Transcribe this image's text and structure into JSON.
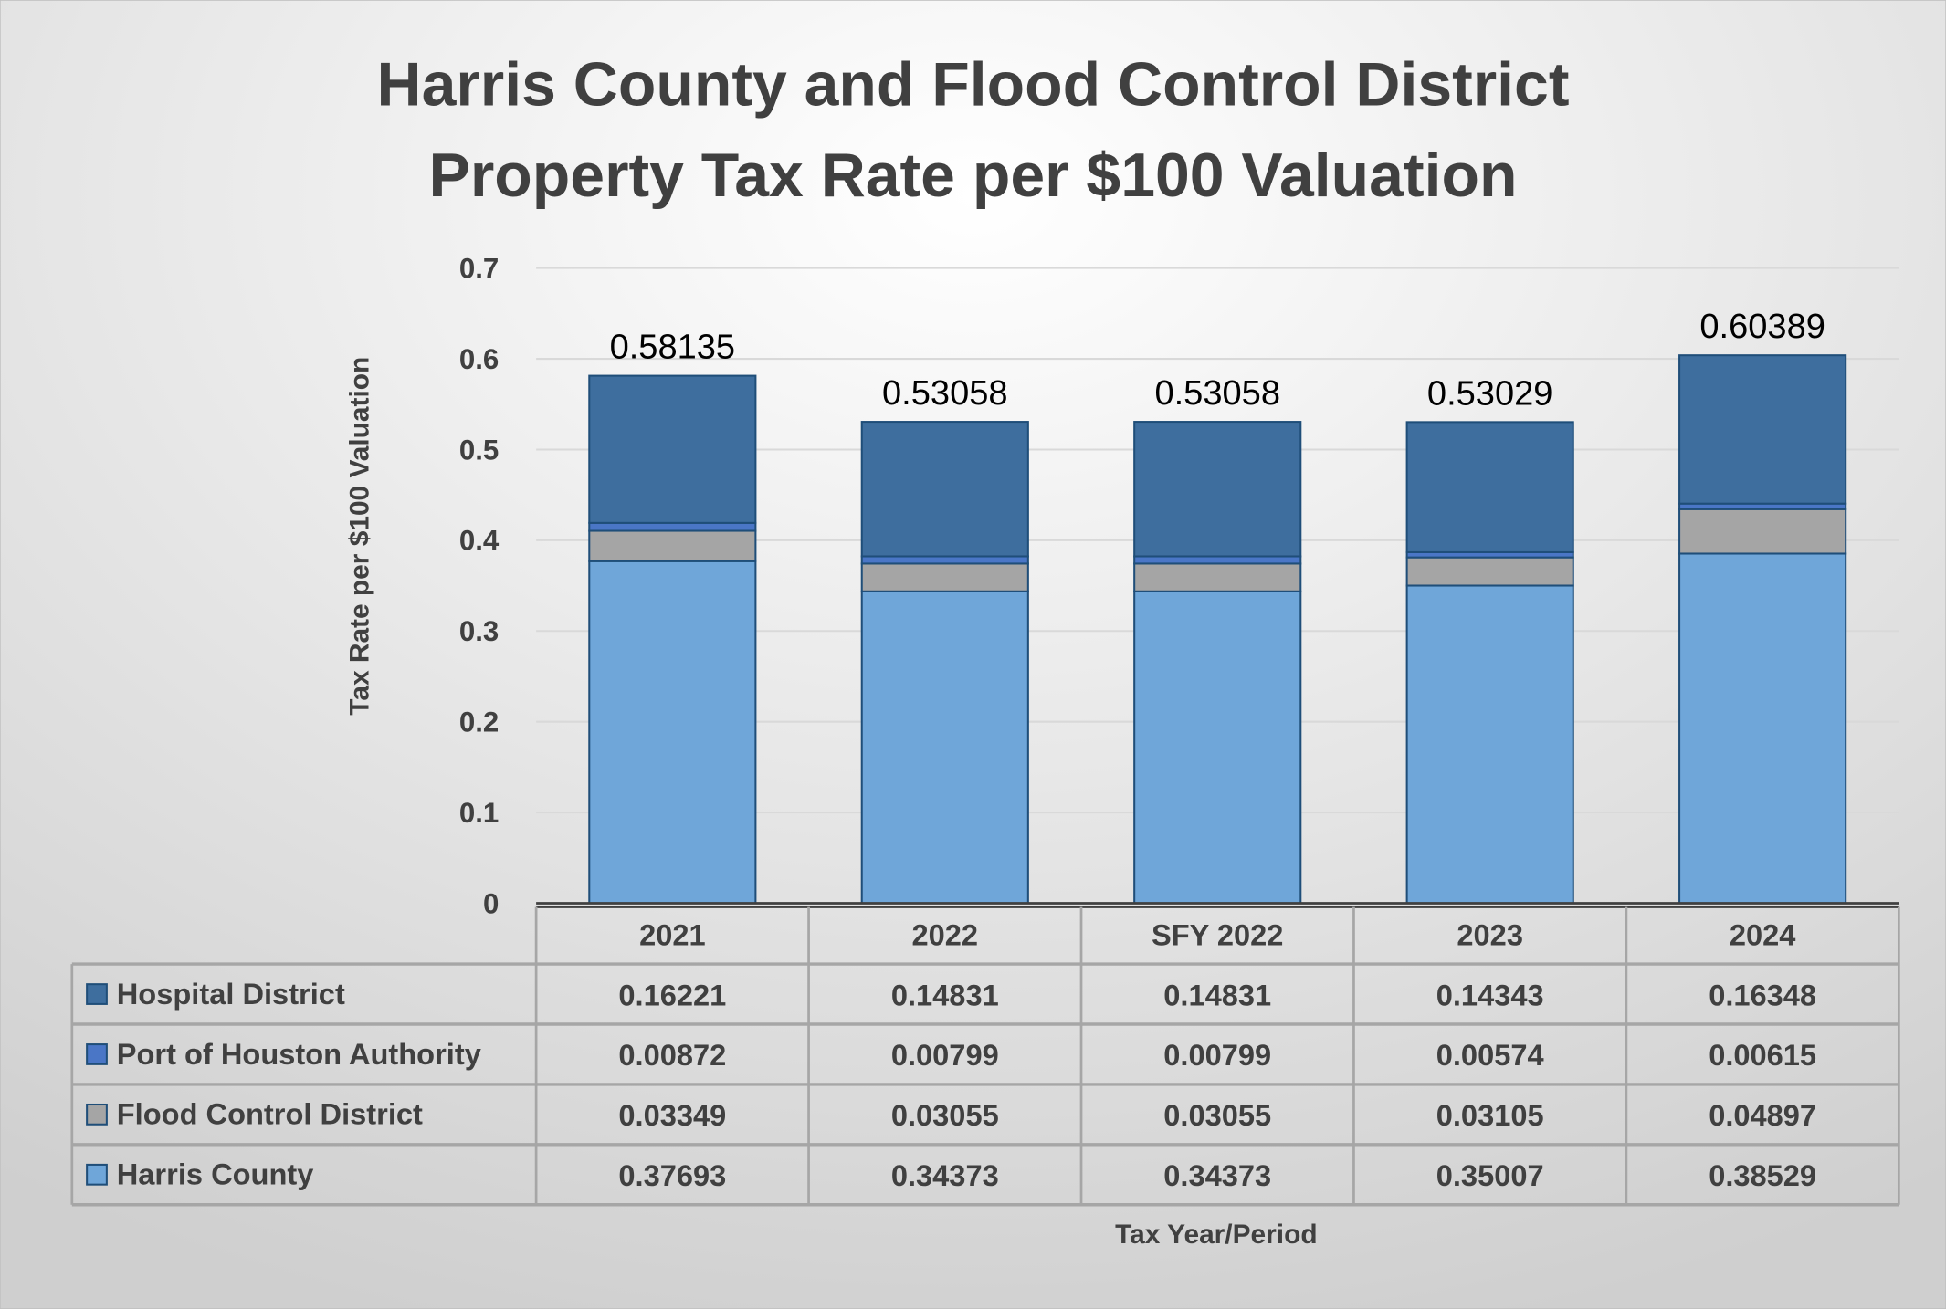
{
  "chart_data": {
    "type": "bar",
    "stacked": true,
    "title": [
      "Harris County and Flood Control District",
      "Property Tax Rate per $100 Valuation"
    ],
    "xlabel": "Tax Year/Period",
    "ylabel": "Tax Rate per $100 Valuation",
    "ylim": [
      0,
      0.7
    ],
    "yticks": [
      "0",
      "0.1",
      "0.2",
      "0.3",
      "0.4",
      "0.5",
      "0.6",
      "0.7"
    ],
    "grid": true,
    "legend": "data-table",
    "categories": [
      "2021",
      "2022",
      "SFY 2022",
      "2023",
      "2024"
    ],
    "series": [
      {
        "name": "Harris County",
        "color": "#6fa6d9",
        "values": [
          0.37693,
          0.34373,
          0.34373,
          0.35007,
          0.38529
        ]
      },
      {
        "name": "Flood Control District",
        "color": "#a5a5a5",
        "values": [
          0.03349,
          0.03055,
          0.03055,
          0.03105,
          0.04897
        ]
      },
      {
        "name": "Port of Houston Authority",
        "color": "#4a76c6",
        "values": [
          0.00872,
          0.00799,
          0.00799,
          0.00574,
          0.00615
        ]
      },
      {
        "name": "Hospital District",
        "color": "#3e6e9e",
        "values": [
          0.16221,
          0.14831,
          0.14831,
          0.14343,
          0.16348
        ]
      }
    ],
    "totals": [
      "0.58135",
      "0.53058",
      "0.53058",
      "0.53029",
      "0.60389"
    ],
    "table_rows": [
      {
        "name": "Hospital District",
        "values": [
          "0.16221",
          "0.14831",
          "0.14831",
          "0.14343",
          "0.16348"
        ]
      },
      {
        "name": "Port of Houston Authority",
        "values": [
          "0.00872",
          "0.00799",
          "0.00799",
          "0.00574",
          "0.00615"
        ]
      },
      {
        "name": "Flood Control District",
        "values": [
          "0.03349",
          "0.03055",
          "0.03055",
          "0.03105",
          "0.04897"
        ]
      },
      {
        "name": "Harris County",
        "values": [
          "0.37693",
          "0.34373",
          "0.34373",
          "0.35007",
          "0.38529"
        ]
      }
    ]
  }
}
